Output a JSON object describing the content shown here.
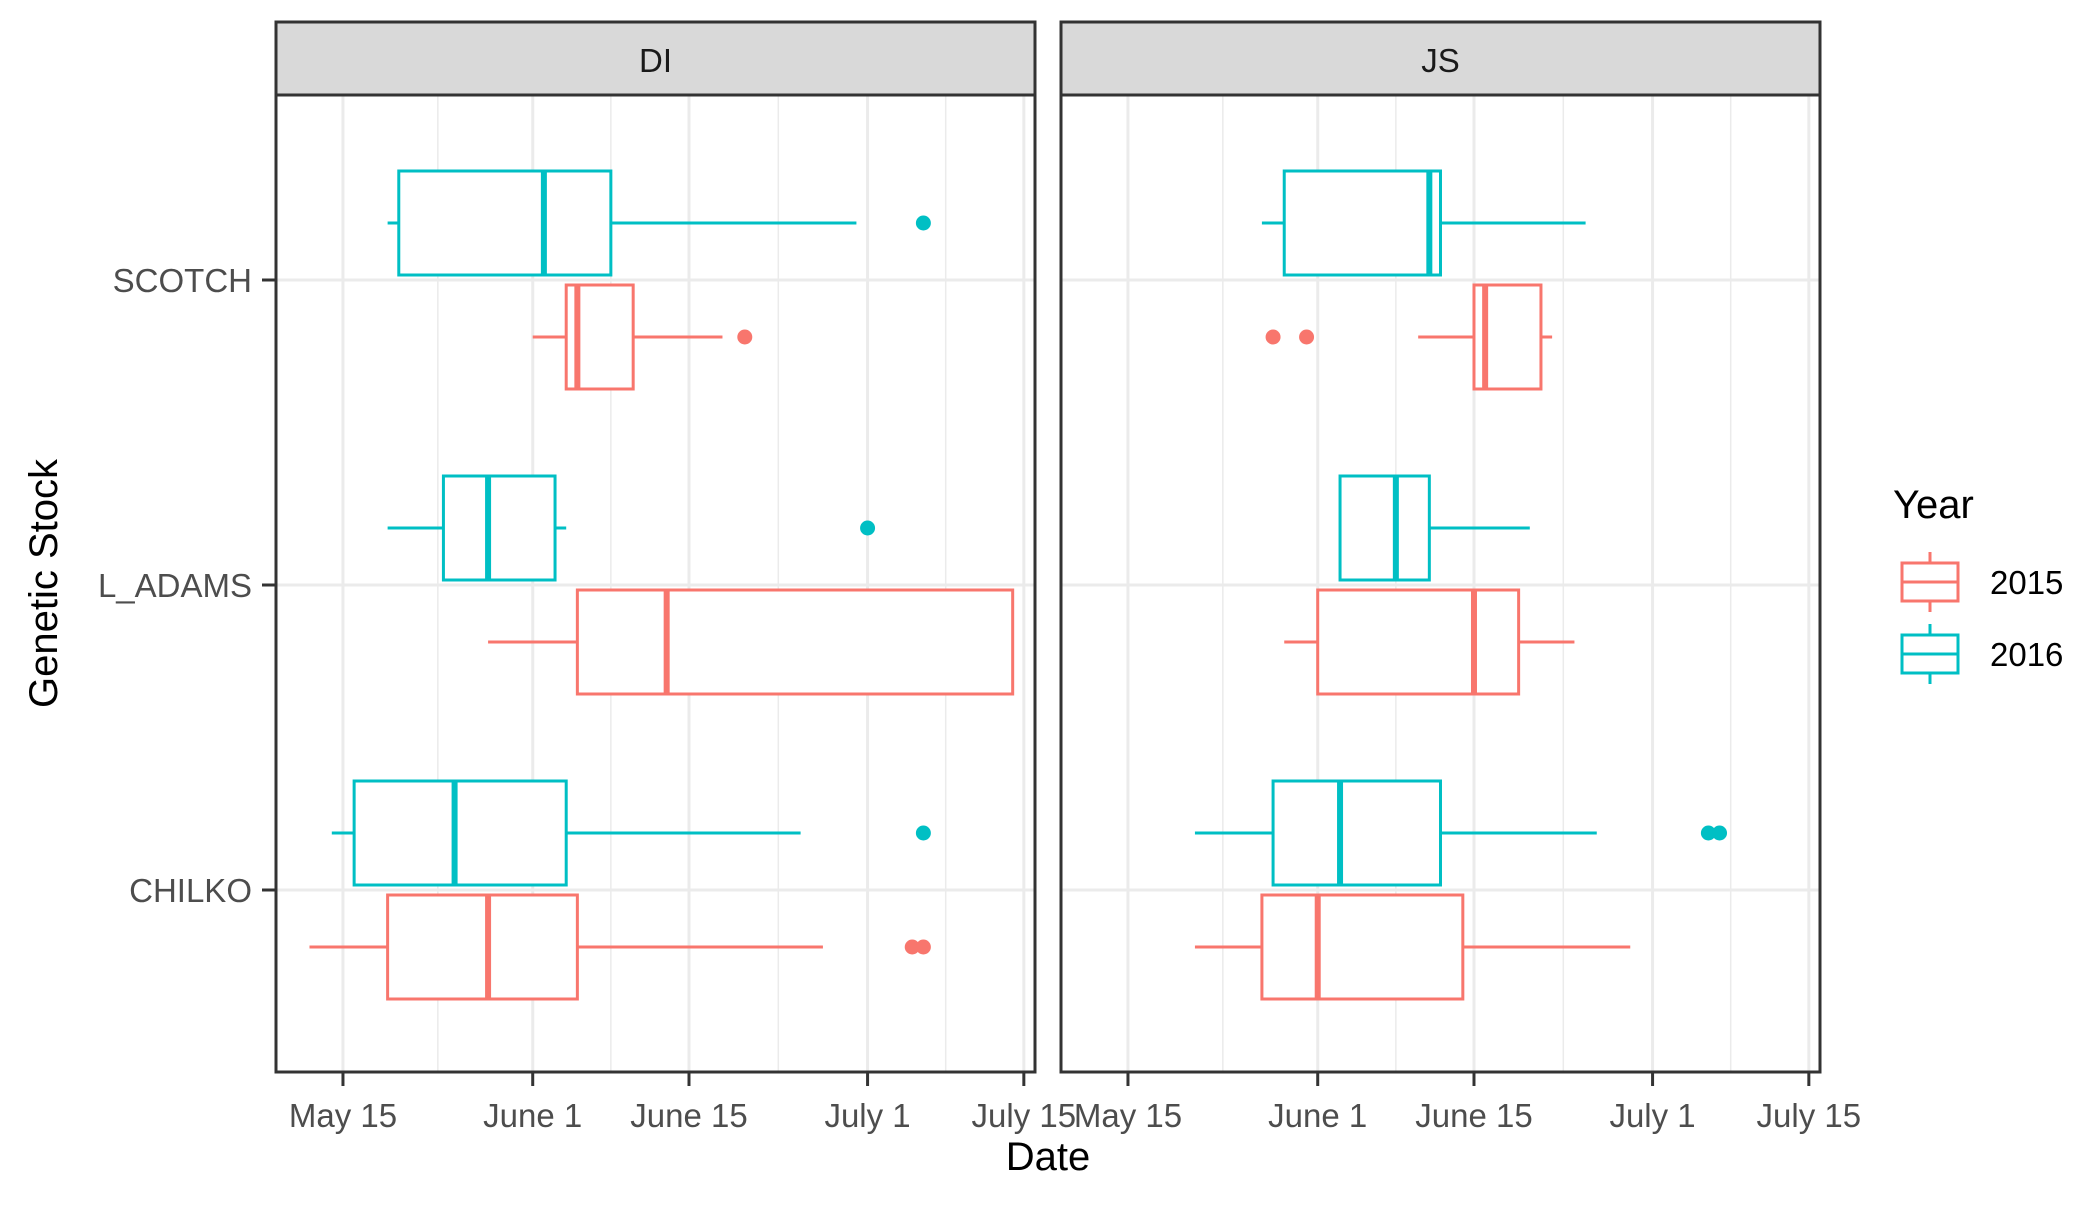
{
  "chart_data": {
    "type": "boxplot",
    "xlabel": "Date",
    "ylabel": "Genetic Stock",
    "x_unit": "date",
    "xlim": [
      "2016-05-09",
      "2016-07-16"
    ],
    "x_ticks": [
      "2016-05-15",
      "2016-06-01",
      "2016-06-15",
      "2016-07-01",
      "2016-07-15"
    ],
    "x_tick_labels": [
      "May 15",
      "June 1",
      "June 15",
      "July 1",
      "July 15"
    ],
    "categories": [
      "SCOTCH",
      "L_ADAMS",
      "CHILKO"
    ],
    "legend": {
      "title": "Year",
      "position": "right",
      "entries": [
        {
          "label": "2015",
          "color": "#F8766D"
        },
        {
          "label": "2016",
          "color": "#00BFC4"
        }
      ]
    },
    "grid": true,
    "panels": [
      {
        "strip": "DI",
        "boxes": [
          {
            "category": "SCOTCH",
            "year": "2016",
            "whisker_low": "2016-05-19",
            "q1": "2016-05-20",
            "median": "2016-06-02",
            "q3": "2016-06-08",
            "whisker_high": "2016-06-30",
            "outliers": [
              "2016-07-06"
            ]
          },
          {
            "category": "SCOTCH",
            "year": "2015",
            "whisker_low": "2016-06-01",
            "q1": "2016-06-04",
            "median": "2016-06-05",
            "q3": "2016-06-10",
            "whisker_high": "2016-06-18",
            "outliers": [
              "2016-06-20"
            ]
          },
          {
            "category": "L_ADAMS",
            "year": "2016",
            "whisker_low": "2016-05-19",
            "q1": "2016-05-24",
            "median": "2016-05-28",
            "q3": "2016-06-03",
            "whisker_high": "2016-06-04",
            "outliers": [
              "2016-07-01"
            ]
          },
          {
            "category": "L_ADAMS",
            "year": "2015",
            "whisker_low": "2016-05-28",
            "q1": "2016-06-05",
            "median": "2016-06-13",
            "q3": "2016-07-14",
            "whisker_high": "2016-07-14",
            "outliers": []
          },
          {
            "category": "CHILKO",
            "year": "2016",
            "whisker_low": "2016-05-14",
            "q1": "2016-05-16",
            "median": "2016-05-25",
            "q3": "2016-06-04",
            "whisker_high": "2016-06-25",
            "outliers": [
              "2016-07-06"
            ]
          },
          {
            "category": "CHILKO",
            "year": "2015",
            "whisker_low": "2016-05-12",
            "q1": "2016-05-19",
            "median": "2016-05-28",
            "q3": "2016-06-05",
            "whisker_high": "2016-06-27",
            "outliers": [
              "2016-07-05",
              "2016-07-06"
            ]
          }
        ]
      },
      {
        "strip": "JS",
        "boxes": [
          {
            "category": "SCOTCH",
            "year": "2016",
            "whisker_low": "2016-05-27",
            "q1": "2016-05-29",
            "median": "2016-06-11",
            "q3": "2016-06-12",
            "whisker_high": "2016-06-25",
            "outliers": []
          },
          {
            "category": "SCOTCH",
            "year": "2015",
            "whisker_low": "2016-06-10",
            "q1": "2016-06-15",
            "median": "2016-06-16",
            "q3": "2016-06-21",
            "whisker_high": "2016-06-22",
            "outliers": [
              "2016-05-28",
              "2016-05-31"
            ]
          },
          {
            "category": "L_ADAMS",
            "year": "2016",
            "whisker_low": "2016-06-03",
            "q1": "2016-06-03",
            "median": "2016-06-08",
            "q3": "2016-06-11",
            "whisker_high": "2016-06-20",
            "outliers": []
          },
          {
            "category": "L_ADAMS",
            "year": "2015",
            "whisker_low": "2016-05-29",
            "q1": "2016-06-01",
            "median": "2016-06-15",
            "q3": "2016-06-19",
            "whisker_high": "2016-06-24",
            "outliers": []
          },
          {
            "category": "CHILKO",
            "year": "2016",
            "whisker_low": "2016-05-21",
            "q1": "2016-05-28",
            "median": "2016-06-03",
            "q3": "2016-06-12",
            "whisker_high": "2016-06-26",
            "outliers": [
              "2016-07-06",
              "2016-07-07"
            ]
          },
          {
            "category": "CHILKO",
            "year": "2015",
            "whisker_low": "2016-05-21",
            "q1": "2016-05-27",
            "median": "2016-06-01",
            "q3": "2016-06-14",
            "whisker_high": "2016-06-29",
            "outliers": []
          }
        ]
      }
    ]
  }
}
